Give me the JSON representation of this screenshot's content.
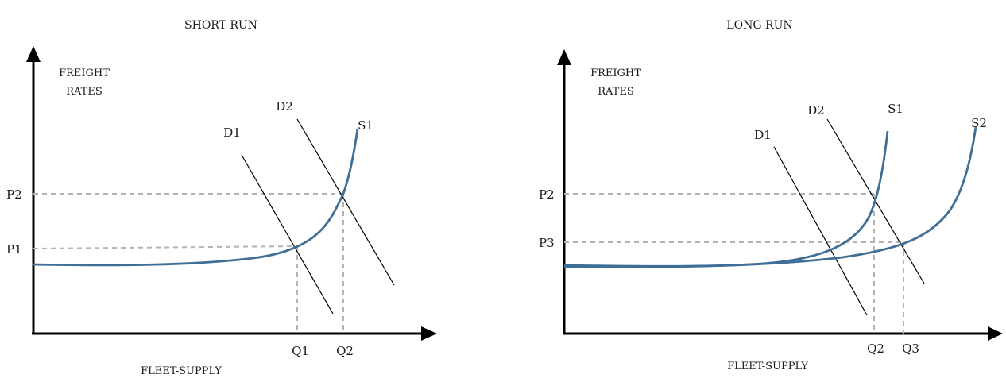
{
  "short_run": {
    "title": "SHORT RUN",
    "y_axis_label_line1": "FREIGHT",
    "y_axis_label_line2": "RATES",
    "x_axis_label": "FLEET-SUPPLY",
    "price_labels": [
      "P2",
      "P1"
    ],
    "quantity_labels": [
      "Q1",
      "Q2"
    ],
    "demand_labels": [
      "D1",
      "D2"
    ],
    "supply_labels": [
      "S1"
    ]
  },
  "long_run": {
    "title": "LONG RUN",
    "y_axis_label_line1": "FREIGHT",
    "y_axis_label_line2": "RATES",
    "x_axis_label": "FLEET-SUPPLY",
    "price_labels": [
      "P2",
      "P3"
    ],
    "quantity_labels": [
      "Q2",
      "Q3"
    ],
    "demand_labels": [
      "D1",
      "D2"
    ],
    "supply_labels": [
      "S1",
      "S2"
    ]
  },
  "colors": {
    "supply_curve": "#3f6e96",
    "guide_lines": "#b3b3b3",
    "axes": "#000000"
  }
}
